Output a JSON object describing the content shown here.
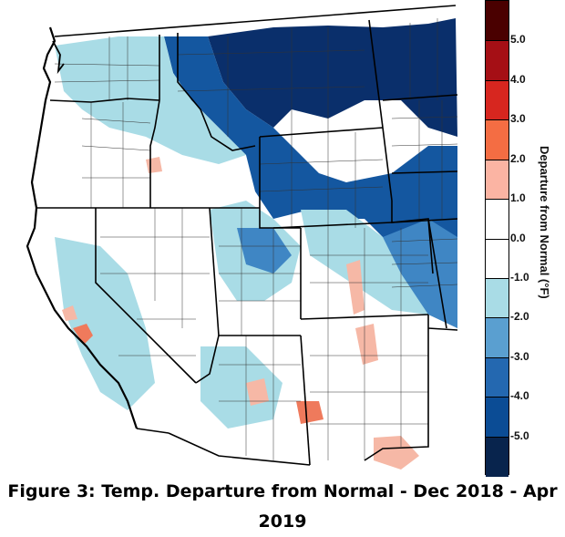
{
  "legend": {
    "title": "Departure from Normal (°F)",
    "ticks": [
      "5.0",
      "4.0",
      "3.0",
      "2.0",
      "1.0",
      "0.0",
      "-1.0",
      "-2.0",
      "-3.0",
      "-4.0",
      "-5.0"
    ],
    "bins": [
      {
        "color": "#4a0000"
      },
      {
        "color": "#a50f15"
      },
      {
        "color": "#d7261f"
      },
      {
        "color": "#f46d43"
      },
      {
        "color": "#fbb4a3"
      },
      {
        "color": "#ffffff"
      },
      {
        "color": "#ffffff"
      },
      {
        "color": "#a9dce6"
      },
      {
        "color": "#5a9fd0"
      },
      {
        "color": "#2468b0"
      },
      {
        "color": "#0b4c95"
      },
      {
        "color": "#08244d"
      }
    ]
  },
  "caption": "Figure 3: Temp. Departure from Normal - Dec 2018 - Apr 2019",
  "map": {
    "colors": {
      "coast": "#000000",
      "state_border": "#000000",
      "county_border": "#333333",
      "cold_deep": "#0a2f6b",
      "cold_strong": "#1457a0",
      "cold_mid": "#3f86c4",
      "cold_light": "#a9dce6",
      "warm_light": "#f6b8a6",
      "warm_mid": "#ef7a5c"
    }
  }
}
